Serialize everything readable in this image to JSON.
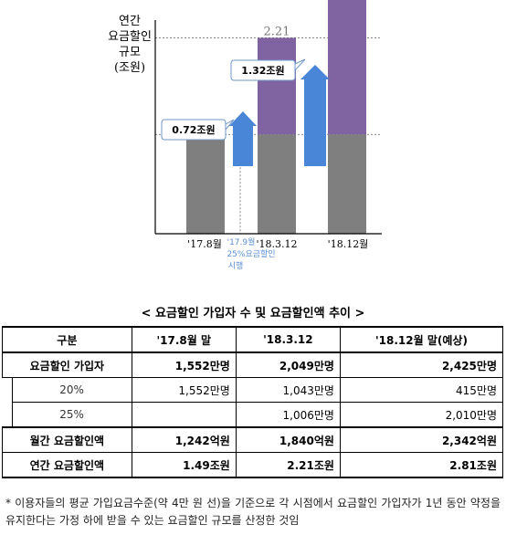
{
  "chart_data": {
    "type": "bar",
    "ylabel": [
      "연간",
      "요금할인",
      "규모",
      "(조원)"
    ],
    "categories": [
      "'17.8월",
      "'18.3.12",
      "'18.12월"
    ],
    "base_value": 1.49,
    "values": [
      1.49,
      2.21,
      2.81
    ],
    "value_labels": [
      "1.49",
      "2.21",
      "2.81"
    ],
    "increments": [
      {
        "label": "0.72조원",
        "from": 1.49,
        "to": 2.21
      },
      {
        "label": "1.32조원",
        "from": 1.49,
        "to": 2.81
      }
    ],
    "annotation": [
      "'17.9월",
      "25%요금할인",
      "시행"
    ],
    "colors": {
      "base": "#7f7f7f",
      "increase": "#8064a2",
      "arrow": "#4a86d8",
      "value_label_last": "#5b8fd6"
    }
  },
  "table": {
    "caption": "< 요금할인 가입자 수 및 요금할인액 추이 >",
    "headers": [
      "구분",
      "'17.8월 말",
      "'18.3.12",
      "'18.12월 말(예상)"
    ],
    "rows": {
      "subscribers": {
        "label": "요금할인 가입자",
        "values": [
          "1,552만명",
          "2,049만명",
          "2,425만명"
        ]
      },
      "pct20": {
        "label": "20%",
        "values": [
          "1,552만명",
          "1,043만명",
          "415만명"
        ]
      },
      "pct25": {
        "label": "25%",
        "values": [
          "",
          "1,006만명",
          "2,010만명"
        ]
      },
      "monthly": {
        "label": "월간 요금할인액",
        "values": [
          "1,242억원",
          "1,840억원",
          "2,342억원"
        ]
      },
      "annual": {
        "label": "연간 요금할인액",
        "values": [
          "1.49조원",
          "2.21조원",
          "2.81조원"
        ]
      }
    }
  },
  "footnote": "* 이용자들의 평균 가입요금수준(약 4만 원 선)을 기준으로 각 시점에서 요금할인 가입자가 1년 동안 약정을 유지한다는 가정 하에 받을 수 있는 요금할인 규모를 산정한 것임"
}
